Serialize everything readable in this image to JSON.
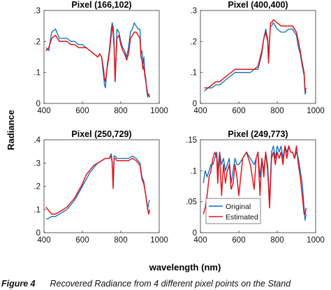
{
  "figure": {
    "ylabel": "Radiance",
    "xlabel": "wavelength (nm)",
    "caption_label": "Figure 4",
    "caption_text": "Recovered Radiance from 4 different pixel points on the Stand"
  },
  "chart_data": [
    {
      "type": "line",
      "title": "Pixel (166,102)",
      "xlim": [
        400,
        1000
      ],
      "ylim": [
        0,
        0.3
      ],
      "xticks": [
        400,
        600,
        800,
        1000
      ],
      "yticks": [
        0,
        0.1,
        0.2,
        0.3
      ],
      "colors": {
        "Original": "#0a6cc4",
        "Estimated": "#e3141a"
      },
      "series": [
        {
          "name": "Original",
          "x": [
            410,
            425,
            440,
            460,
            480,
            500,
            520,
            540,
            560,
            580,
            600,
            620,
            640,
            660,
            680,
            690,
            700,
            710,
            715,
            720,
            730,
            740,
            750,
            755,
            760,
            765,
            770,
            780,
            790,
            800,
            810,
            820,
            830,
            840,
            850,
            860,
            870,
            880,
            890,
            900,
            905,
            910,
            915,
            920,
            925,
            930,
            935,
            940,
            945,
            950
          ],
          "y": [
            0.18,
            0.17,
            0.23,
            0.24,
            0.21,
            0.21,
            0.21,
            0.2,
            0.2,
            0.19,
            0.19,
            0.18,
            0.17,
            0.16,
            0.15,
            0.16,
            0.15,
            0.09,
            0.06,
            0.05,
            0.13,
            0.17,
            0.24,
            0.26,
            0.25,
            0.2,
            0.07,
            0.24,
            0.23,
            0.2,
            0.18,
            0.17,
            0.15,
            0.18,
            0.23,
            0.24,
            0.26,
            0.25,
            0.24,
            0.24,
            0.16,
            0.17,
            0.12,
            0.15,
            0.1,
            0.08,
            0.04,
            0.02,
            0.03,
            0.02
          ]
        },
        {
          "name": "Estimated",
          "x": [
            410,
            425,
            440,
            460,
            480,
            500,
            520,
            540,
            560,
            580,
            600,
            620,
            640,
            660,
            680,
            690,
            700,
            710,
            715,
            720,
            730,
            740,
            750,
            755,
            760,
            765,
            770,
            780,
            790,
            800,
            810,
            820,
            830,
            840,
            850,
            860,
            870,
            880,
            890,
            900,
            905,
            910,
            915,
            920,
            925,
            930,
            935,
            940,
            945,
            950
          ],
          "y": [
            0.17,
            0.18,
            0.21,
            0.22,
            0.2,
            0.2,
            0.2,
            0.19,
            0.19,
            0.18,
            0.18,
            0.18,
            0.17,
            0.16,
            0.15,
            0.16,
            0.15,
            0.11,
            0.08,
            0.07,
            0.12,
            0.16,
            0.22,
            0.25,
            0.23,
            0.18,
            0.07,
            0.21,
            0.22,
            0.19,
            0.17,
            0.16,
            0.14,
            0.16,
            0.21,
            0.22,
            0.23,
            0.23,
            0.22,
            0.21,
            0.15,
            0.14,
            0.11,
            0.12,
            0.09,
            0.07,
            0.05,
            0.03,
            0.03,
            0.02
          ]
        }
      ]
    },
    {
      "type": "line",
      "title": "Pixel (400,400)",
      "xlim": [
        400,
        1000
      ],
      "ylim": [
        0,
        0.3
      ],
      "xticks": [
        400,
        600,
        800,
        1000
      ],
      "yticks": [
        0,
        0.1,
        0.2,
        0.3
      ],
      "colors": {
        "Original": "#0a6cc4",
        "Estimated": "#e3141a"
      },
      "series": [
        {
          "name": "Original",
          "x": [
            420,
            440,
            460,
            480,
            500,
            520,
            540,
            560,
            580,
            600,
            620,
            640,
            660,
            680,
            700,
            720,
            730,
            740,
            750,
            755,
            760,
            765,
            770,
            780,
            800,
            820,
            840,
            860,
            880,
            900,
            910,
            920,
            930,
            940,
            945,
            950
          ],
          "y": [
            0.04,
            0.05,
            0.05,
            0.06,
            0.06,
            0.07,
            0.08,
            0.09,
            0.1,
            0.1,
            0.1,
            0.1,
            0.1,
            0.11,
            0.11,
            0.16,
            0.21,
            0.24,
            0.21,
            0.15,
            0.21,
            0.25,
            0.25,
            0.26,
            0.24,
            0.23,
            0.23,
            0.24,
            0.24,
            0.22,
            0.18,
            0.16,
            0.12,
            0.09,
            0.03,
            0.04
          ]
        },
        {
          "name": "Estimated",
          "x": [
            420,
            440,
            460,
            480,
            500,
            520,
            540,
            560,
            580,
            600,
            620,
            640,
            660,
            680,
            700,
            720,
            730,
            740,
            750,
            755,
            760,
            765,
            770,
            780,
            800,
            820,
            840,
            860,
            880,
            900,
            910,
            920,
            930,
            940,
            945,
            950
          ],
          "y": [
            0.05,
            0.05,
            0.06,
            0.07,
            0.07,
            0.08,
            0.09,
            0.1,
            0.11,
            0.11,
            0.11,
            0.11,
            0.11,
            0.11,
            0.12,
            0.17,
            0.21,
            0.23,
            0.2,
            0.13,
            0.2,
            0.26,
            0.26,
            0.27,
            0.26,
            0.25,
            0.25,
            0.25,
            0.25,
            0.23,
            0.2,
            0.17,
            0.13,
            0.1,
            0.04,
            0.05
          ]
        }
      ]
    },
    {
      "type": "line",
      "title": "Pixel (250,729)",
      "xlim": [
        400,
        1000
      ],
      "ylim": [
        0,
        0.4
      ],
      "xticks": [
        400,
        600,
        800,
        1000
      ],
      "yticks": [
        0,
        0.1,
        0.2,
        0.3,
        0.4
      ],
      "colors": {
        "Original": "#0a6cc4",
        "Estimated": "#e3141a"
      },
      "series": [
        {
          "name": "Original",
          "x": [
            410,
            420,
            440,
            460,
            480,
            500,
            520,
            540,
            560,
            580,
            600,
            620,
            640,
            660,
            680,
            700,
            720,
            740,
            750,
            755,
            760,
            765,
            770,
            780,
            800,
            820,
            840,
            860,
            880,
            900,
            910,
            920,
            930,
            940,
            945,
            950
          ],
          "y": [
            0.06,
            0.06,
            0.07,
            0.07,
            0.08,
            0.09,
            0.1,
            0.12,
            0.14,
            0.17,
            0.2,
            0.23,
            0.26,
            0.28,
            0.3,
            0.31,
            0.32,
            0.32,
            0.34,
            0.31,
            0.2,
            0.33,
            0.33,
            0.32,
            0.32,
            0.32,
            0.32,
            0.33,
            0.32,
            0.3,
            0.24,
            0.22,
            0.16,
            0.1,
            0.13,
            0.14
          ]
        },
        {
          "name": "Estimated",
          "x": [
            410,
            420,
            440,
            460,
            480,
            500,
            520,
            540,
            560,
            580,
            600,
            620,
            640,
            660,
            680,
            700,
            720,
            740,
            750,
            755,
            760,
            765,
            770,
            780,
            800,
            820,
            840,
            860,
            880,
            900,
            910,
            920,
            930,
            940,
            945,
            950
          ],
          "y": [
            0.11,
            0.1,
            0.08,
            0.08,
            0.09,
            0.1,
            0.11,
            0.13,
            0.15,
            0.18,
            0.21,
            0.25,
            0.27,
            0.29,
            0.3,
            0.31,
            0.32,
            0.32,
            0.33,
            0.3,
            0.19,
            0.32,
            0.32,
            0.31,
            0.31,
            0.31,
            0.31,
            0.32,
            0.31,
            0.29,
            0.23,
            0.21,
            0.16,
            0.1,
            0.08,
            0.1
          ]
        }
      ]
    },
    {
      "type": "line",
      "title": "Pixel (249,773)",
      "xlim": [
        400,
        1000
      ],
      "ylim": [
        0,
        0.15
      ],
      "xticks": [
        400,
        600,
        800,
        1000
      ],
      "yticks": [
        0,
        0.05,
        0.1,
        0.15
      ],
      "legend": {
        "entries": [
          "Original",
          "Estimated"
        ],
        "position": "bottom-left"
      },
      "colors": {
        "Original": "#0a6cc4",
        "Estimated": "#e3141a"
      },
      "series": [
        {
          "name": "Original",
          "x": [
            415,
            425,
            435,
            445,
            455,
            465,
            475,
            485,
            490,
            500,
            510,
            520,
            530,
            540,
            550,
            560,
            570,
            580,
            590,
            600,
            620,
            640,
            660,
            680,
            690,
            700,
            710,
            720,
            730,
            740,
            750,
            760,
            770,
            780,
            790,
            800,
            810,
            820,
            830,
            840,
            850,
            860,
            870,
            880,
            890,
            900,
            910,
            920,
            930,
            940,
            945,
            950
          ],
          "y": [
            0.08,
            0.1,
            0.09,
            0.1,
            0.11,
            0.11,
            0.12,
            0.13,
            0.1,
            0.13,
            0.11,
            0.12,
            0.1,
            0.11,
            0.12,
            0.08,
            0.1,
            0.12,
            0.11,
            0.11,
            0.12,
            0.13,
            0.12,
            0.11,
            0.12,
            0.13,
            0.09,
            0.12,
            0.1,
            0.13,
            0.11,
            0.05,
            0.13,
            0.14,
            0.12,
            0.14,
            0.13,
            0.14,
            0.12,
            0.14,
            0.13,
            0.14,
            0.13,
            0.13,
            0.12,
            0.13,
            0.12,
            0.1,
            0.08,
            0.04,
            0.02,
            0.03
          ]
        },
        {
          "name": "Estimated",
          "x": [
            415,
            425,
            435,
            445,
            455,
            465,
            475,
            485,
            490,
            500,
            510,
            520,
            530,
            540,
            550,
            560,
            570,
            580,
            590,
            600,
            620,
            640,
            660,
            680,
            690,
            700,
            710,
            720,
            730,
            740,
            750,
            760,
            770,
            780,
            790,
            800,
            810,
            820,
            830,
            840,
            850,
            860,
            870,
            880,
            890,
            900,
            910,
            920,
            930,
            940,
            945,
            950
          ],
          "y": [
            0.03,
            0.04,
            0.06,
            0.09,
            0.1,
            0.12,
            0.13,
            0.12,
            0.08,
            0.13,
            0.06,
            0.11,
            0.08,
            0.1,
            0.11,
            0.07,
            0.08,
            0.11,
            0.09,
            0.06,
            0.12,
            0.13,
            0.11,
            0.07,
            0.12,
            0.13,
            0.06,
            0.12,
            0.09,
            0.13,
            0.1,
            0.04,
            0.12,
            0.13,
            0.11,
            0.13,
            0.12,
            0.13,
            0.11,
            0.14,
            0.12,
            0.14,
            0.13,
            0.13,
            0.12,
            0.14,
            0.11,
            0.09,
            0.06,
            0.03,
            0.03,
            0.04
          ]
        }
      ]
    }
  ]
}
